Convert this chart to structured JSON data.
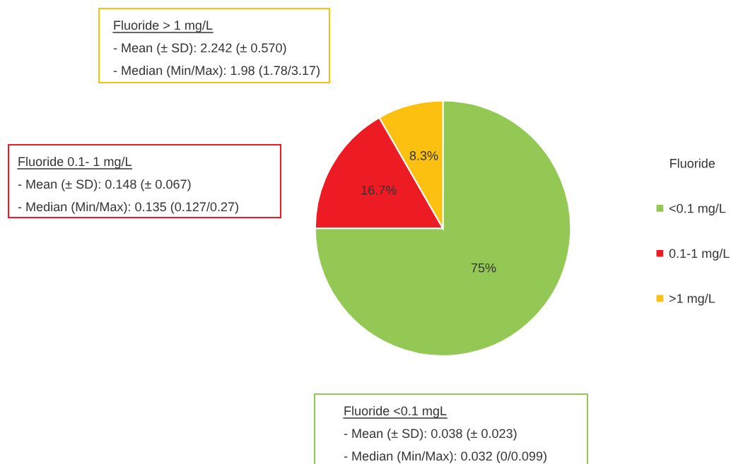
{
  "chart_data": {
    "type": "pie",
    "categories": [
      "<0.1 mg/L",
      "0.1-1 mg/L",
      ">1 mg/L"
    ],
    "values": [
      75,
      16.7,
      8.3
    ],
    "colors": [
      "#92c853",
      "#ed1c24",
      "#fcc010"
    ],
    "value_labels": [
      "75%",
      "16.7%",
      "8.3%"
    ],
    "legend_title": "Fluoride",
    "legend": "right",
    "annotations": [
      "Fluoride > 1 mg/L",
      "- Mean (± SD): 2.242 (± 0.570)",
      "- Median (Min/Max): 1.98 (1.78/3.17)",
      "Fluoride 0.1- 1 mg/L",
      "- Mean (± SD): 0.148 (± 0.067)",
      "- Median (Min/Max): 0.135 (0.127/0.27)",
      "Fluoride <0.1 mgL",
      "- Mean (± SD): 0.038 (± 0.023)",
      "- Median (Min/Max): 0.032 (0/0.099)"
    ]
  }
}
